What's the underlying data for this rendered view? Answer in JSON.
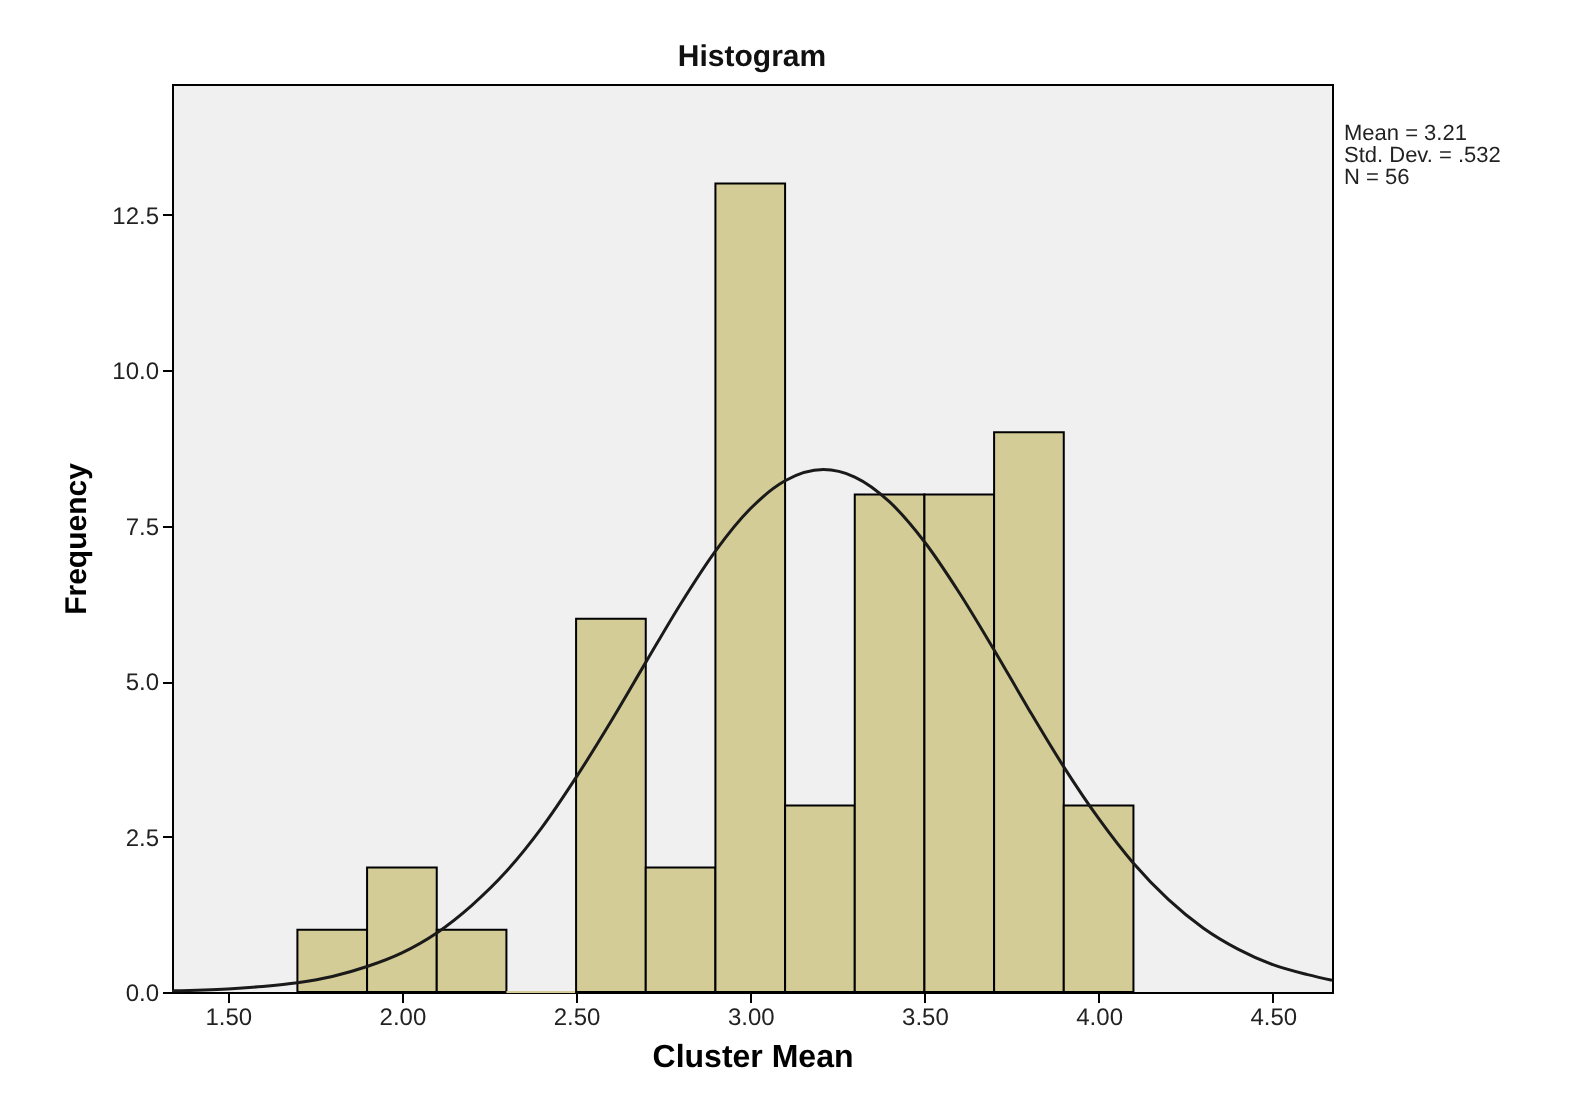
{
  "chart_data": {
    "type": "histogram",
    "title": "Histogram",
    "xlabel": "Cluster Mean",
    "ylabel": "Frequency",
    "bins": [
      1.7,
      1.9,
      2.1,
      2.3,
      2.5,
      2.7,
      2.9,
      3.1,
      3.3,
      3.5,
      3.7,
      3.9,
      4.1
    ],
    "values": [
      1,
      2,
      1,
      0,
      6,
      2,
      13,
      3,
      8,
      8,
      9,
      3
    ],
    "color": "#d4cc96",
    "series": [
      {
        "type": "line",
        "color": "#1a1a1a",
        "x": [
          1.34,
          1.5,
          1.6,
          1.7,
          1.8,
          1.9,
          2.0,
          2.1,
          2.2,
          2.3,
          2.4,
          2.5,
          2.6,
          2.7,
          2.8,
          2.9,
          3.0,
          3.1,
          3.21,
          3.3,
          3.4,
          3.5,
          3.6,
          3.7,
          3.8,
          3.9,
          4.0,
          4.1,
          4.2,
          4.3,
          4.4,
          4.5,
          4.6,
          4.67
        ],
        "values": [
          0.02,
          0.05,
          0.09,
          0.15,
          0.25,
          0.41,
          0.63,
          0.95,
          1.39,
          1.94,
          2.63,
          3.45,
          4.35,
          5.3,
          6.24,
          7.09,
          7.77,
          8.22,
          8.4,
          8.28,
          7.88,
          7.24,
          6.42,
          5.5,
          4.54,
          3.62,
          2.79,
          2.07,
          1.49,
          1.03,
          0.69,
          0.44,
          0.28,
          0.19
        ]
      }
    ],
    "xlim": [
      1.34,
      4.67
    ],
    "ylim": [
      0,
      14.6
    ],
    "xticks": [
      {
        "value": 1.5,
        "label": "1.50"
      },
      {
        "value": 2,
        "label": "2.00"
      },
      {
        "value": 2.5,
        "label": "2.50"
      },
      {
        "value": 3,
        "label": "3.00"
      },
      {
        "value": 3.5,
        "label": "3.50"
      },
      {
        "value": 4,
        "label": "4.00"
      },
      {
        "value": 4.5,
        "label": "4.50"
      }
    ],
    "yticks": [
      {
        "value": 0,
        "label": "0.0"
      },
      {
        "value": 2.5,
        "label": "2.5"
      },
      {
        "value": 5,
        "label": "5.0"
      },
      {
        "value": 7.5,
        "label": "7.5"
      },
      {
        "value": 10,
        "label": "10.0"
      },
      {
        "value": 12.5,
        "label": "12.5"
      }
    ],
    "annotations": [
      "Mean = 3.21",
      "Std. Dev. = .532",
      "N = 56"
    ],
    "grid": false
  }
}
